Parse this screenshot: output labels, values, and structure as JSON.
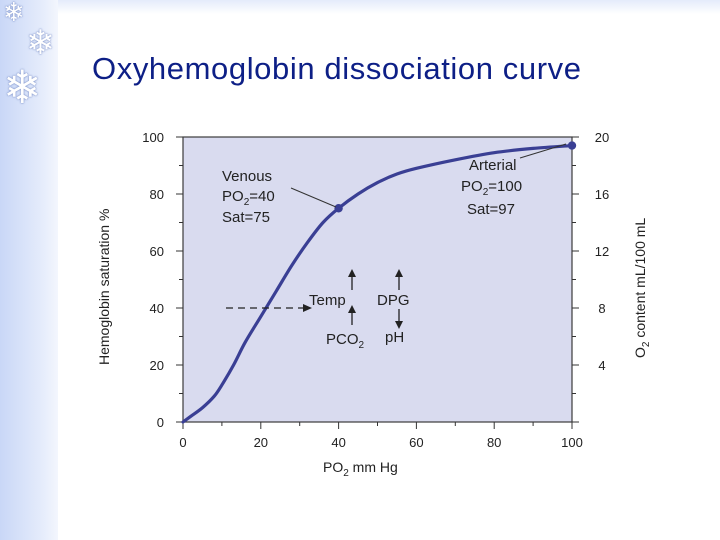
{
  "slide": {
    "title": "Oxyhemoglobin dissociation curve",
    "decorations": [
      "snowflake-icon",
      "snowflake-icon",
      "snowflake-icon"
    ],
    "colors": {
      "title": "#0d1f86",
      "plot_bg": "#d9dbef",
      "curve": "#3a3f94",
      "side_band": "#c9d7f7"
    }
  },
  "chart_data": {
    "type": "line",
    "xlabel_base": "PO",
    "xlabel_sub": "2",
    "xlabel_rest": " mm Hg",
    "ylabel": "Hemoglobin saturation %",
    "y2label_base": "O",
    "y2label_sub": "2",
    "y2label_rest": " content mL/100 mL",
    "xlim": [
      0,
      100
    ],
    "ylim": [
      0,
      100
    ],
    "y2lim": [
      0,
      20
    ],
    "xticks": [
      0,
      20,
      40,
      60,
      80,
      100
    ],
    "yticks": [
      0,
      20,
      40,
      60,
      80,
      100
    ],
    "y2ticks": [
      4,
      8,
      12,
      16,
      20
    ],
    "grid": false,
    "series": [
      {
        "x": [
          0,
          2,
          5,
          8,
          10,
          13,
          16,
          20,
          24,
          28,
          32,
          36,
          40,
          45,
          50,
          55,
          60,
          70,
          80,
          90,
          100
        ],
        "y": [
          0,
          2,
          5,
          9,
          13,
          20,
          28,
          37,
          46,
          55,
          63,
          70,
          75,
          80,
          84,
          87,
          89,
          92,
          94.5,
          96,
          97
        ]
      }
    ],
    "points": [
      {
        "name": "venous",
        "x": 40,
        "y": 75
      },
      {
        "name": "arterial",
        "x": 100,
        "y": 97
      }
    ],
    "annotations": {
      "venous": {
        "line1": "Venous",
        "line2_base": "PO",
        "line2_sub": "2",
        "line2_rest": "=40",
        "line3": "Sat=75"
      },
      "arterial": {
        "line1": "Arterial",
        "line2_base": "PO",
        "line2_sub": "2",
        "line2_rest": "=100",
        "line3": "Sat=97"
      },
      "shift_labels": {
        "temp": "Temp",
        "dpg": "DPG",
        "pco2_base": "PCO",
        "pco2_sub": "2",
        "ph": "pH"
      }
    }
  }
}
